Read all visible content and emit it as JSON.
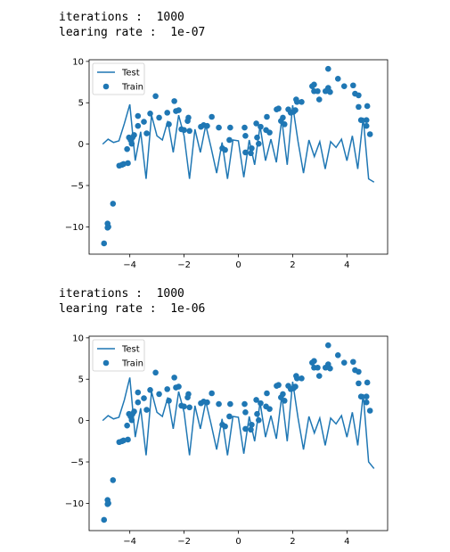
{
  "outputs": [
    {
      "lines": [
        "iterations :  1000",
        "learing rate :  1e-07"
      ]
    },
    {
      "lines": [
        "iterations :  1000",
        "learing rate :  1e-06"
      ]
    }
  ],
  "chart_data": [
    {
      "type": "line",
      "legend": "upper left",
      "xlim": [
        -5.5,
        5.5
      ],
      "ylim": [
        -13.3,
        10.2
      ],
      "xticks": [
        {
          "value": -4,
          "label": "−4"
        },
        {
          "value": -2,
          "label": "−2"
        },
        0,
        2,
        4
      ],
      "yticks": [
        {
          "value": -10,
          "label": "−10"
        },
        {
          "value": -5,
          "label": "−5"
        },
        0,
        5,
        10
      ],
      "series": [
        {
          "name": "Test",
          "type": "line",
          "color": "#1f77b4",
          "x": [
            -5.0,
            -4.8,
            -4.6,
            -4.4,
            -4.2,
            -4.0,
            -3.8,
            -3.6,
            -3.4,
            -3.2,
            -3.0,
            -2.8,
            -2.6,
            -2.4,
            -2.2,
            -2.0,
            -1.8,
            -1.6,
            -1.4,
            -1.2,
            -1.0,
            -0.8,
            -0.6,
            -0.4,
            -0.2,
            0.0,
            0.2,
            0.4,
            0.6,
            0.8,
            1.0,
            1.2,
            1.4,
            1.6,
            1.8,
            2.0,
            2.2,
            2.4,
            2.6,
            2.8,
            3.0,
            3.2,
            3.4,
            3.6,
            3.8,
            4.0,
            4.2,
            4.4,
            4.6,
            4.8,
            5.0
          ],
          "values": [
            0,
            0.6,
            0.2,
            0.4,
            2.5,
            4.8,
            -2.0,
            1.5,
            -4.2,
            3.5,
            1.0,
            0.5,
            2.8,
            -1.0,
            3.5,
            1.0,
            -4.2,
            1.8,
            -1.0,
            2.3,
            -0.5,
            -3.5,
            0.2,
            -4.2,
            0.5,
            0.4,
            -4.0,
            0.5,
            -2.5,
            2.2,
            -2.0,
            0.6,
            -2.2,
            3.0,
            -2.5,
            4.7,
            0.3,
            -3.5,
            0.5,
            -1.5,
            0.3,
            -3.0,
            0.3,
            -0.4,
            0.6,
            -2.0,
            1.0,
            -3.0,
            3.2,
            -4.2,
            -4.6
          ]
        },
        {
          "name": "Train",
          "type": "scatter",
          "color": "#1f77b4",
          "x": [
            -4.95,
            -4.82,
            -4.79,
            -4.82,
            -4.62,
            -4.39,
            -4.29,
            -4.23,
            -4.07,
            -4.1,
            -4.03,
            -3.97,
            -3.93,
            -3.9,
            -3.84,
            -3.7,
            -3.7,
            -3.48,
            -3.38,
            -3.25,
            -3.05,
            -2.92,
            -2.62,
            -2.56,
            -2.36,
            -2.3,
            -2.2,
            -2.1,
            -2.0,
            -1.84,
            -1.87,
            -1.8,
            -1.38,
            -1.28,
            -1.15,
            -0.98,
            -0.72,
            -0.59,
            -0.49,
            -0.33,
            -0.3,
            0.23,
            0.26,
            0.26,
            0.46,
            0.49,
            0.66,
            0.69,
            0.75,
            0.82,
            1.02,
            1.05,
            1.15,
            1.41,
            1.48,
            1.57,
            1.64,
            1.7,
            1.84,
            1.93,
            2.03,
            2.1,
            2.13,
            2.16,
            2.33,
            2.72,
            2.79,
            2.79,
            2.92,
            2.98,
            3.21,
            3.31,
            3.31,
            3.38,
            3.67,
            3.9,
            4.23,
            4.3,
            4.43,
            4.43,
            4.52,
            4.72,
            4.75,
            4.72,
            4.85
          ],
          "values": [
            -12.0,
            -9.6,
            -10.0,
            -10.1,
            -7.2,
            -2.6,
            -2.5,
            -2.4,
            -2.3,
            -0.6,
            0.8,
            0.5,
            0.05,
            0.8,
            1.1,
            3.4,
            2.2,
            2.7,
            1.3,
            3.7,
            5.8,
            3.2,
            3.8,
            2.4,
            5.2,
            4.0,
            4.1,
            1.8,
            1.7,
            3.2,
            2.8,
            1.6,
            2.1,
            2.3,
            2.2,
            3.3,
            2.0,
            -0.5,
            -0.7,
            0.5,
            2.0,
            2.0,
            1.0,
            -1.0,
            -1.1,
            -0.5,
            2.5,
            0.8,
            0.05,
            2.1,
            1.7,
            3.3,
            1.4,
            4.2,
            4.3,
            2.8,
            3.2,
            2.4,
            4.2,
            3.8,
            3.9,
            4.1,
            5.4,
            5.1,
            5.1,
            7.0,
            7.2,
            6.4,
            6.4,
            5.4,
            6.4,
            6.8,
            9.1,
            6.3,
            7.9,
            7.0,
            7.1,
            6.1,
            5.9,
            4.5,
            2.9,
            2.9,
            4.6,
            2.2,
            1.2
          ]
        }
      ]
    },
    {
      "type": "line",
      "legend": "upper left",
      "xlim": [
        -5.5,
        5.5
      ],
      "ylim": [
        -13.3,
        10.2
      ],
      "xticks": [
        {
          "value": -4,
          "label": "−4"
        },
        {
          "value": -2,
          "label": "−2"
        },
        0,
        2,
        4
      ],
      "yticks": [
        {
          "value": -10,
          "label": "−10"
        },
        {
          "value": -5,
          "label": "−5"
        },
        0,
        5,
        10
      ],
      "series": [
        {
          "name": "Test",
          "type": "line",
          "color": "#1f77b4",
          "x": [
            -5.0,
            -4.8,
            -4.6,
            -4.4,
            -4.2,
            -4.0,
            -3.8,
            -3.6,
            -3.4,
            -3.2,
            -3.0,
            -2.8,
            -2.6,
            -2.4,
            -2.2,
            -2.0,
            -1.8,
            -1.6,
            -1.4,
            -1.2,
            -1.0,
            -0.8,
            -0.6,
            -0.4,
            -0.2,
            0.0,
            0.2,
            0.4,
            0.6,
            0.8,
            1.0,
            1.2,
            1.4,
            1.6,
            1.8,
            2.0,
            2.2,
            2.4,
            2.6,
            2.8,
            3.0,
            3.2,
            3.4,
            3.6,
            3.8,
            4.0,
            4.2,
            4.4,
            4.6,
            4.8,
            5.0
          ],
          "values": [
            0,
            0.6,
            0.2,
            0.4,
            2.5,
            5.2,
            -2.0,
            1.5,
            -4.2,
            3.5,
            1.0,
            0.5,
            2.8,
            -1.0,
            3.5,
            1.0,
            -4.2,
            1.8,
            -1.0,
            2.3,
            -0.5,
            -3.5,
            0.2,
            -4.2,
            0.5,
            0.4,
            -4.0,
            0.5,
            -2.5,
            2.2,
            -2.0,
            0.6,
            -2.2,
            3.0,
            -2.5,
            4.7,
            0.3,
            -3.5,
            0.5,
            -1.5,
            0.3,
            -3.0,
            0.3,
            -0.4,
            0.6,
            -2.0,
            1.0,
            -3.0,
            3.2,
            -5.0,
            -5.8
          ]
        },
        {
          "name": "Train",
          "type": "scatter",
          "color": "#1f77b4",
          "x": [
            -4.95,
            -4.82,
            -4.79,
            -4.82,
            -4.62,
            -4.39,
            -4.29,
            -4.23,
            -4.07,
            -4.1,
            -4.03,
            -3.97,
            -3.93,
            -3.9,
            -3.84,
            -3.7,
            -3.7,
            -3.48,
            -3.38,
            -3.25,
            -3.05,
            -2.92,
            -2.62,
            -2.56,
            -2.36,
            -2.3,
            -2.2,
            -2.1,
            -2.0,
            -1.84,
            -1.87,
            -1.8,
            -1.38,
            -1.28,
            -1.15,
            -0.98,
            -0.72,
            -0.59,
            -0.49,
            -0.33,
            -0.3,
            0.23,
            0.26,
            0.26,
            0.46,
            0.49,
            0.66,
            0.69,
            0.75,
            0.82,
            1.02,
            1.05,
            1.15,
            1.41,
            1.48,
            1.57,
            1.64,
            1.7,
            1.84,
            1.93,
            2.03,
            2.1,
            2.13,
            2.16,
            2.33,
            2.72,
            2.79,
            2.79,
            2.92,
            2.98,
            3.21,
            3.31,
            3.31,
            3.38,
            3.67,
            3.9,
            4.23,
            4.3,
            4.43,
            4.43,
            4.52,
            4.72,
            4.75,
            4.72,
            4.85
          ],
          "values": [
            -12.0,
            -9.6,
            -10.0,
            -10.1,
            -7.2,
            -2.6,
            -2.5,
            -2.4,
            -2.3,
            -0.6,
            0.8,
            0.5,
            0.05,
            0.8,
            1.1,
            3.4,
            2.2,
            2.7,
            1.3,
            3.7,
            5.8,
            3.2,
            3.8,
            2.4,
            5.2,
            4.0,
            4.1,
            1.8,
            1.7,
            3.2,
            2.8,
            1.6,
            2.1,
            2.3,
            2.2,
            3.3,
            2.0,
            -0.5,
            -0.7,
            0.5,
            2.0,
            2.0,
            1.0,
            -1.0,
            -1.1,
            -0.5,
            2.5,
            0.8,
            0.05,
            2.1,
            1.7,
            3.3,
            1.4,
            4.2,
            4.3,
            2.8,
            3.2,
            2.4,
            4.2,
            3.8,
            3.9,
            4.1,
            5.4,
            5.1,
            5.1,
            7.0,
            7.2,
            6.4,
            6.4,
            5.4,
            6.4,
            6.8,
            9.1,
            6.3,
            7.9,
            7.0,
            7.1,
            6.1,
            5.9,
            4.5,
            2.9,
            2.9,
            4.6,
            2.2,
            1.2
          ]
        }
      ]
    }
  ]
}
